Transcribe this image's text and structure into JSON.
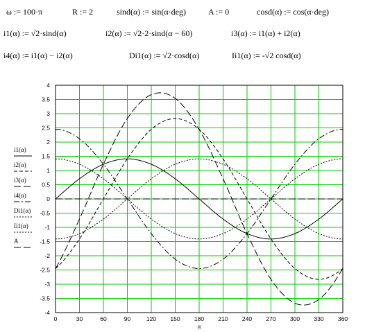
{
  "equations": {
    "row1": [
      "ω := 100·π",
      "R := 2",
      "sind(α) := sin(α·deg)",
      "A := 0",
      "cosd(α) := cos(α·deg)"
    ],
    "row2": [
      "i1(α) := √2·sind(α)",
      "i2(α) := √2·2·sind(α − 60)",
      "i3(α) := i1(α) + i2(α)"
    ],
    "row3": [
      "i4(α) := i1(α) − i2(α)",
      "Di1(α) := √2·cosd(α)",
      "Ii1(α) := -√2 cosd(α)"
    ]
  },
  "chart_data": {
    "type": "line",
    "x_label": "α",
    "xlim": [
      0,
      360
    ],
    "ylim": [
      -4,
      4
    ],
    "x_ticks": [
      0,
      30,
      60,
      90,
      120,
      150,
      180,
      210,
      240,
      270,
      300,
      330,
      360
    ],
    "y_ticks": [
      4,
      3.5,
      3,
      2.5,
      2,
      1.5,
      1,
      0.5,
      0,
      -0.5,
      -1,
      -1.5,
      -2,
      -2.5,
      -3,
      -3.5,
      -4
    ],
    "grid": true,
    "grid_color": "#00cc00",
    "x": [
      0,
      30,
      60,
      90,
      120,
      150,
      180,
      210,
      240,
      270,
      300,
      330,
      360
    ],
    "series": [
      {
        "name": "i1(α)",
        "dash": "solid",
        "values": [
          0,
          0.71,
          1.22,
          1.41,
          1.22,
          0.71,
          0,
          -0.71,
          -1.22,
          -1.41,
          -1.22,
          -0.71,
          0
        ]
      },
      {
        "name": "i2(α)",
        "dash": "dashed",
        "values": [
          -2.45,
          -1.41,
          0,
          1.41,
          2.45,
          2.83,
          2.45,
          1.41,
          0,
          -1.41,
          -2.45,
          -2.83,
          -2.45
        ]
      },
      {
        "name": "i3(α)",
        "dash": "long-dash",
        "values": [
          -2.45,
          -0.71,
          1.22,
          2.83,
          3.67,
          3.54,
          2.45,
          0.71,
          -1.22,
          -2.83,
          -3.67,
          -3.54,
          -2.45
        ]
      },
      {
        "name": "i4(α)",
        "dash": "dash-dot",
        "values": [
          2.45,
          2.12,
          1.22,
          0,
          -1.22,
          -2.12,
          -2.45,
          -2.12,
          -1.22,
          0,
          1.22,
          2.12,
          2.45
        ]
      },
      {
        "name": "Di1(α)",
        "dash": "dotted",
        "values": [
          1.41,
          1.22,
          0.71,
          0,
          -0.71,
          -1.22,
          -1.41,
          -1.22,
          -0.71,
          0,
          0.71,
          1.22,
          1.41
        ]
      },
      {
        "name": "Ii1(α)",
        "dash": "dotted",
        "values": [
          -1.41,
          -1.22,
          -0.71,
          0,
          0.71,
          1.22,
          1.41,
          1.22,
          0.71,
          0,
          -0.71,
          -1.22,
          -1.41
        ]
      },
      {
        "name": "A",
        "dash": "long-dash",
        "values": [
          0,
          0,
          0,
          0,
          0,
          0,
          0,
          0,
          0,
          0,
          0,
          0,
          0
        ]
      }
    ]
  }
}
